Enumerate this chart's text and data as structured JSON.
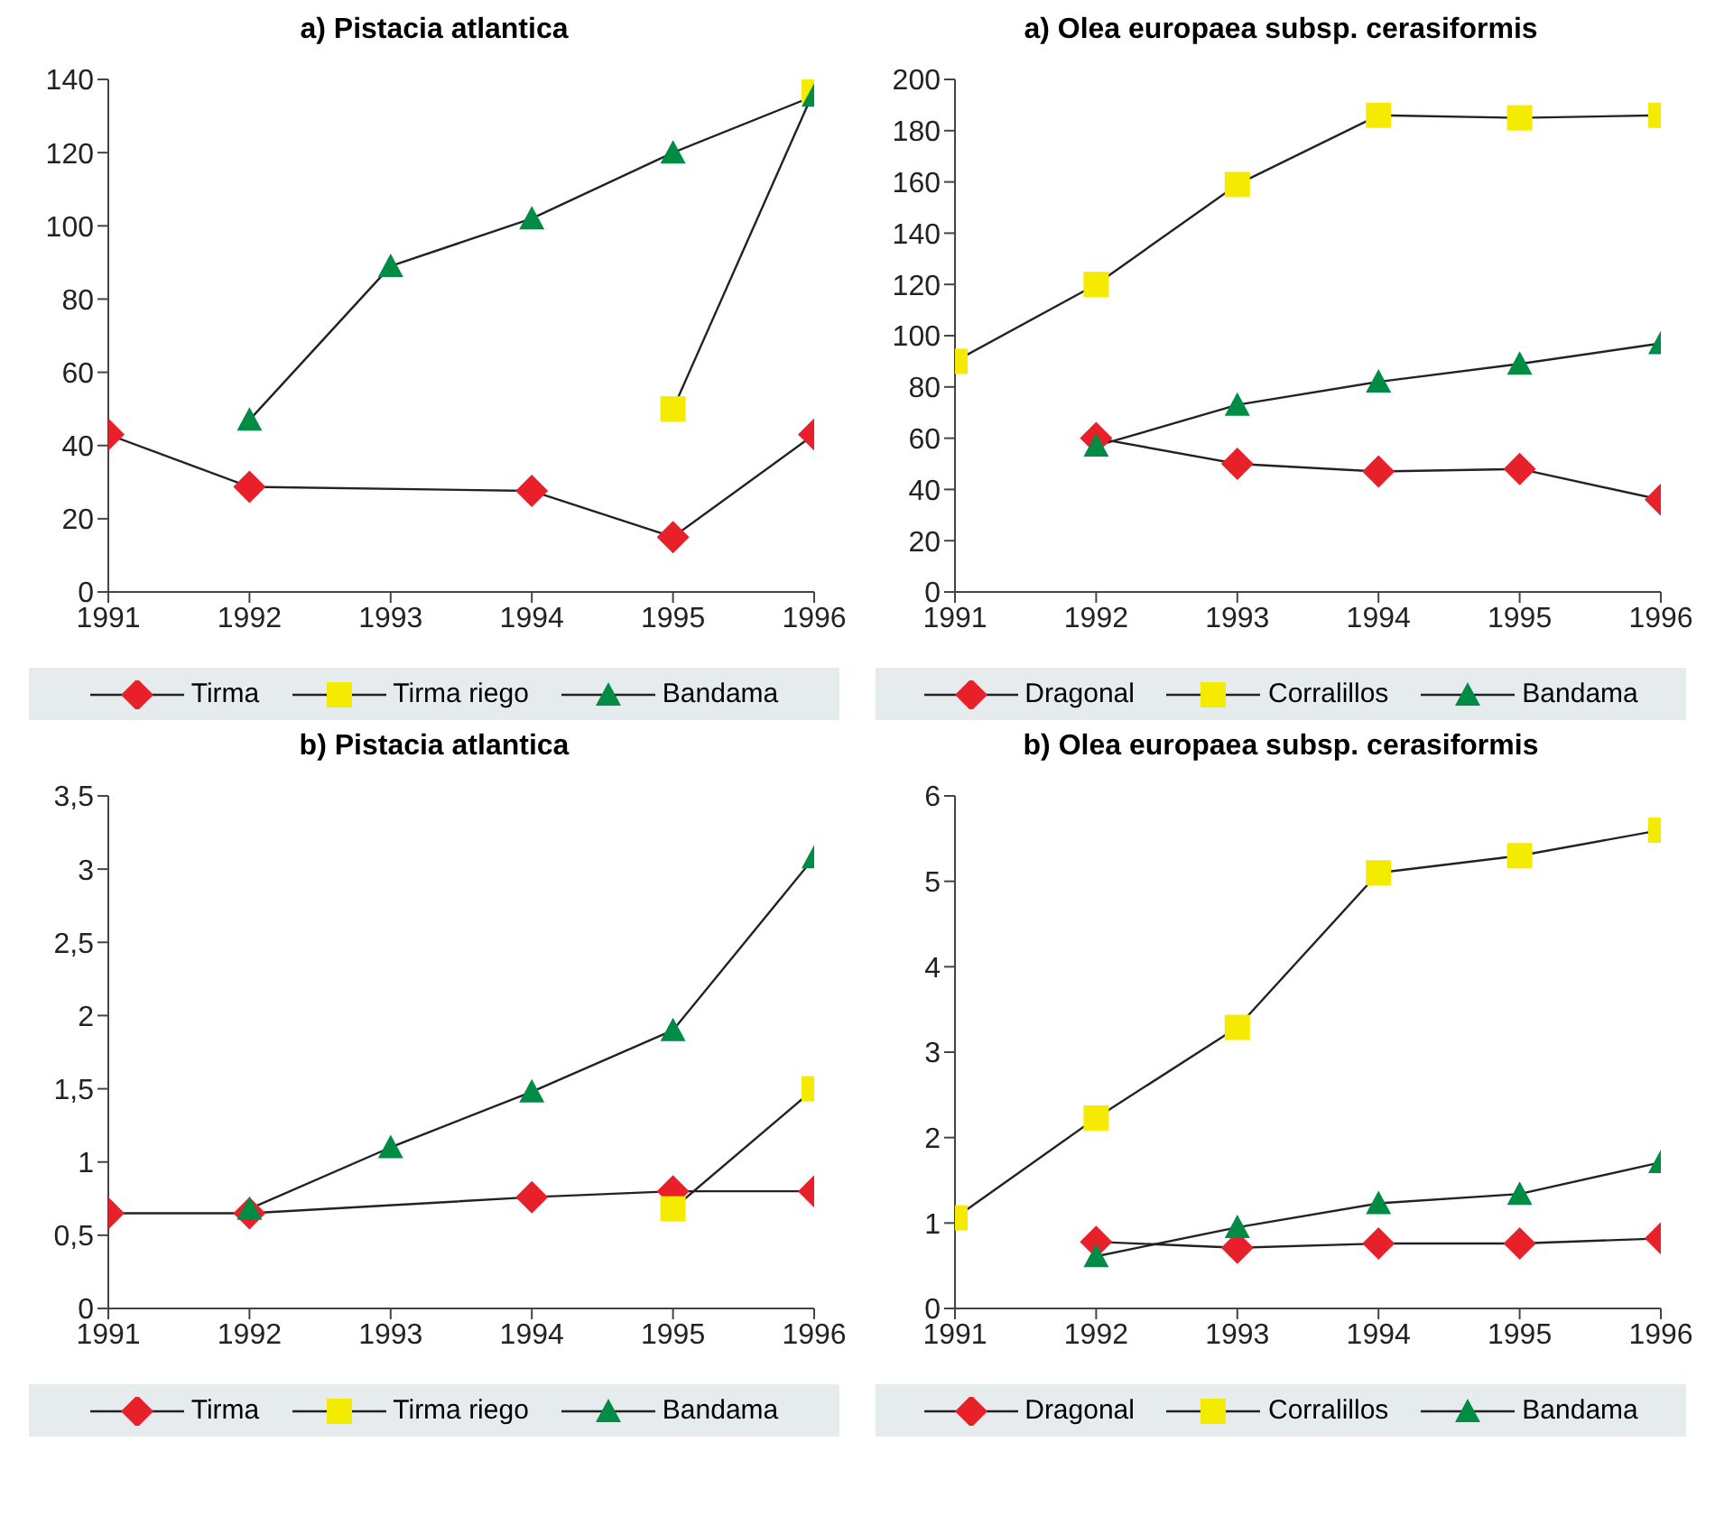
{
  "chart_data": [
    {
      "type": "line",
      "title": "a) Pistacia atlantica",
      "x": [
        1991,
        1992,
        1993,
        1994,
        1995,
        1996
      ],
      "xlim": [
        1991,
        1996
      ],
      "xticks": [
        1991,
        1992,
        1993,
        1994,
        1995,
        1996
      ],
      "ylim": [
        0,
        140
      ],
      "yticks": [
        0,
        20,
        40,
        60,
        80,
        100,
        120,
        140
      ],
      "grid": false,
      "legend": "bottom",
      "series": [
        {
          "name": "Tirma",
          "color": "#e8202a",
          "marker": "diamond",
          "values": [
            43,
            28.7,
            null,
            27.6,
            15,
            43
          ]
        },
        {
          "name": "Tirma riego",
          "color": "#f5eb00",
          "marker": "square",
          "values": [
            null,
            null,
            null,
            null,
            50,
            137
          ]
        },
        {
          "name": "Bandama",
          "color": "#008c45",
          "marker": "triangle",
          "values": [
            null,
            47,
            89,
            102,
            120,
            135.5
          ]
        }
      ]
    },
    {
      "type": "line",
      "title": "a) Olea europaea subsp. cerasiformis",
      "x": [
        1991,
        1992,
        1993,
        1994,
        1995,
        1996
      ],
      "xlim": [
        1991,
        1996
      ],
      "xticks": [
        1991,
        1992,
        1993,
        1994,
        1995,
        1996
      ],
      "ylim": [
        0,
        200
      ],
      "yticks": [
        0,
        20,
        40,
        60,
        80,
        100,
        120,
        140,
        160,
        180,
        200
      ],
      "grid": false,
      "legend": "bottom",
      "series": [
        {
          "name": "Dragonal",
          "color": "#e8202a",
          "marker": "diamond",
          "values": [
            null,
            60,
            50,
            47,
            48,
            36
          ]
        },
        {
          "name": "Corralillos",
          "color": "#f5eb00",
          "marker": "square",
          "values": [
            90,
            120,
            159,
            186,
            185,
            186
          ]
        },
        {
          "name": "Bandama",
          "color": "#008c45",
          "marker": "triangle",
          "values": [
            null,
            57,
            73,
            82,
            89,
            97
          ]
        }
      ]
    },
    {
      "type": "line",
      "title": "b) Pistacia atlantica",
      "x": [
        1991,
        1992,
        1993,
        1994,
        1995,
        1996
      ],
      "xlim": [
        1991,
        1996
      ],
      "xticks": [
        1991,
        1992,
        1993,
        1994,
        1995,
        1996
      ],
      "ylim": [
        0,
        3.5
      ],
      "yticks": [
        0,
        {
          "value": 0.5,
          "label": "0,5"
        },
        1,
        {
          "value": 1.5,
          "label": "1,5"
        },
        2,
        {
          "value": 2.5,
          "label": "2,5"
        },
        3,
        {
          "value": 3.5,
          "label": "3,5"
        }
      ],
      "grid": false,
      "legend": "bottom",
      "series": [
        {
          "name": "Tirma",
          "color": "#e8202a",
          "marker": "diamond",
          "values": [
            0.65,
            0.65,
            null,
            0.76,
            0.8,
            0.8
          ]
        },
        {
          "name": "Tirma riego",
          "color": "#f5eb00",
          "marker": "square",
          "values": [
            null,
            null,
            null,
            null,
            0.68,
            1.5
          ]
        },
        {
          "name": "Bandama",
          "color": "#008c45",
          "marker": "triangle",
          "values": [
            null,
            0.68,
            1.1,
            1.48,
            1.9,
            3.08
          ]
        }
      ]
    },
    {
      "type": "line",
      "title": "b) Olea europaea subsp. cerasiformis",
      "x": [
        1991,
        1992,
        1993,
        1994,
        1995,
        1996
      ],
      "xlim": [
        1991,
        1996
      ],
      "xticks": [
        1991,
        1992,
        1993,
        1994,
        1995,
        1996
      ],
      "ylim": [
        0,
        6
      ],
      "yticks": [
        0,
        1,
        2,
        3,
        4,
        5,
        6
      ],
      "grid": false,
      "legend": "bottom",
      "series": [
        {
          "name": "Dragonal",
          "color": "#e8202a",
          "marker": "diamond",
          "values": [
            null,
            0.78,
            0.71,
            0.76,
            0.76,
            0.82
          ]
        },
        {
          "name": "Corralillos",
          "color": "#f5eb00",
          "marker": "square",
          "values": [
            1.06,
            2.23,
            3.29,
            5.1,
            5.3,
            5.6
          ]
        },
        {
          "name": "Bandama",
          "color": "#008c45",
          "marker": "triangle",
          "values": [
            null,
            0.61,
            0.95,
            1.23,
            1.34,
            1.71
          ]
        }
      ]
    }
  ]
}
